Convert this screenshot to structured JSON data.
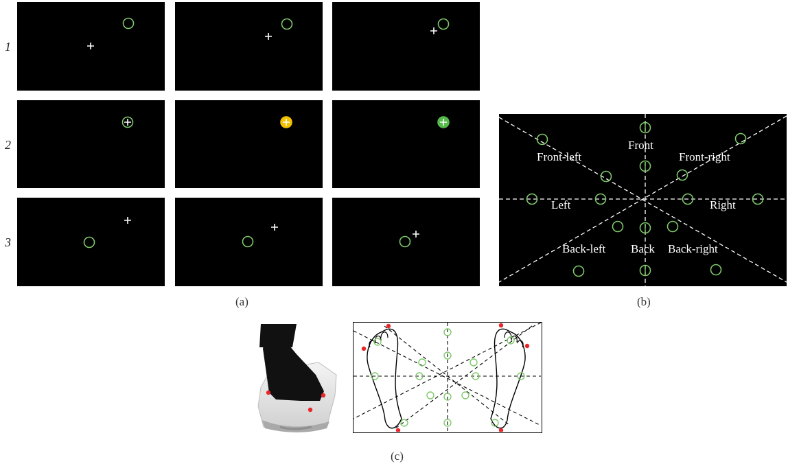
{
  "figure_a": {
    "caption": "(a)",
    "row_labels": [
      "1",
      "2",
      "3"
    ],
    "target_color": "#7ec96a",
    "cursor_color": "#ffffff",
    "fill_states": [
      "none",
      "yellow",
      "green"
    ],
    "fill_colors": {
      "yellow": "#f2c200",
      "green": "#56b94c"
    }
  },
  "figure_b": {
    "caption": "(b)",
    "labels": {
      "front": "Front",
      "front_left": "Front-left",
      "front_right": "Front-right",
      "left": "Left",
      "right": "Right",
      "back_left": "Back-left",
      "back": "Back",
      "back_right": "Back-right"
    }
  },
  "figure_c": {
    "caption": "(c)",
    "marker_color": "#e8262a"
  }
}
